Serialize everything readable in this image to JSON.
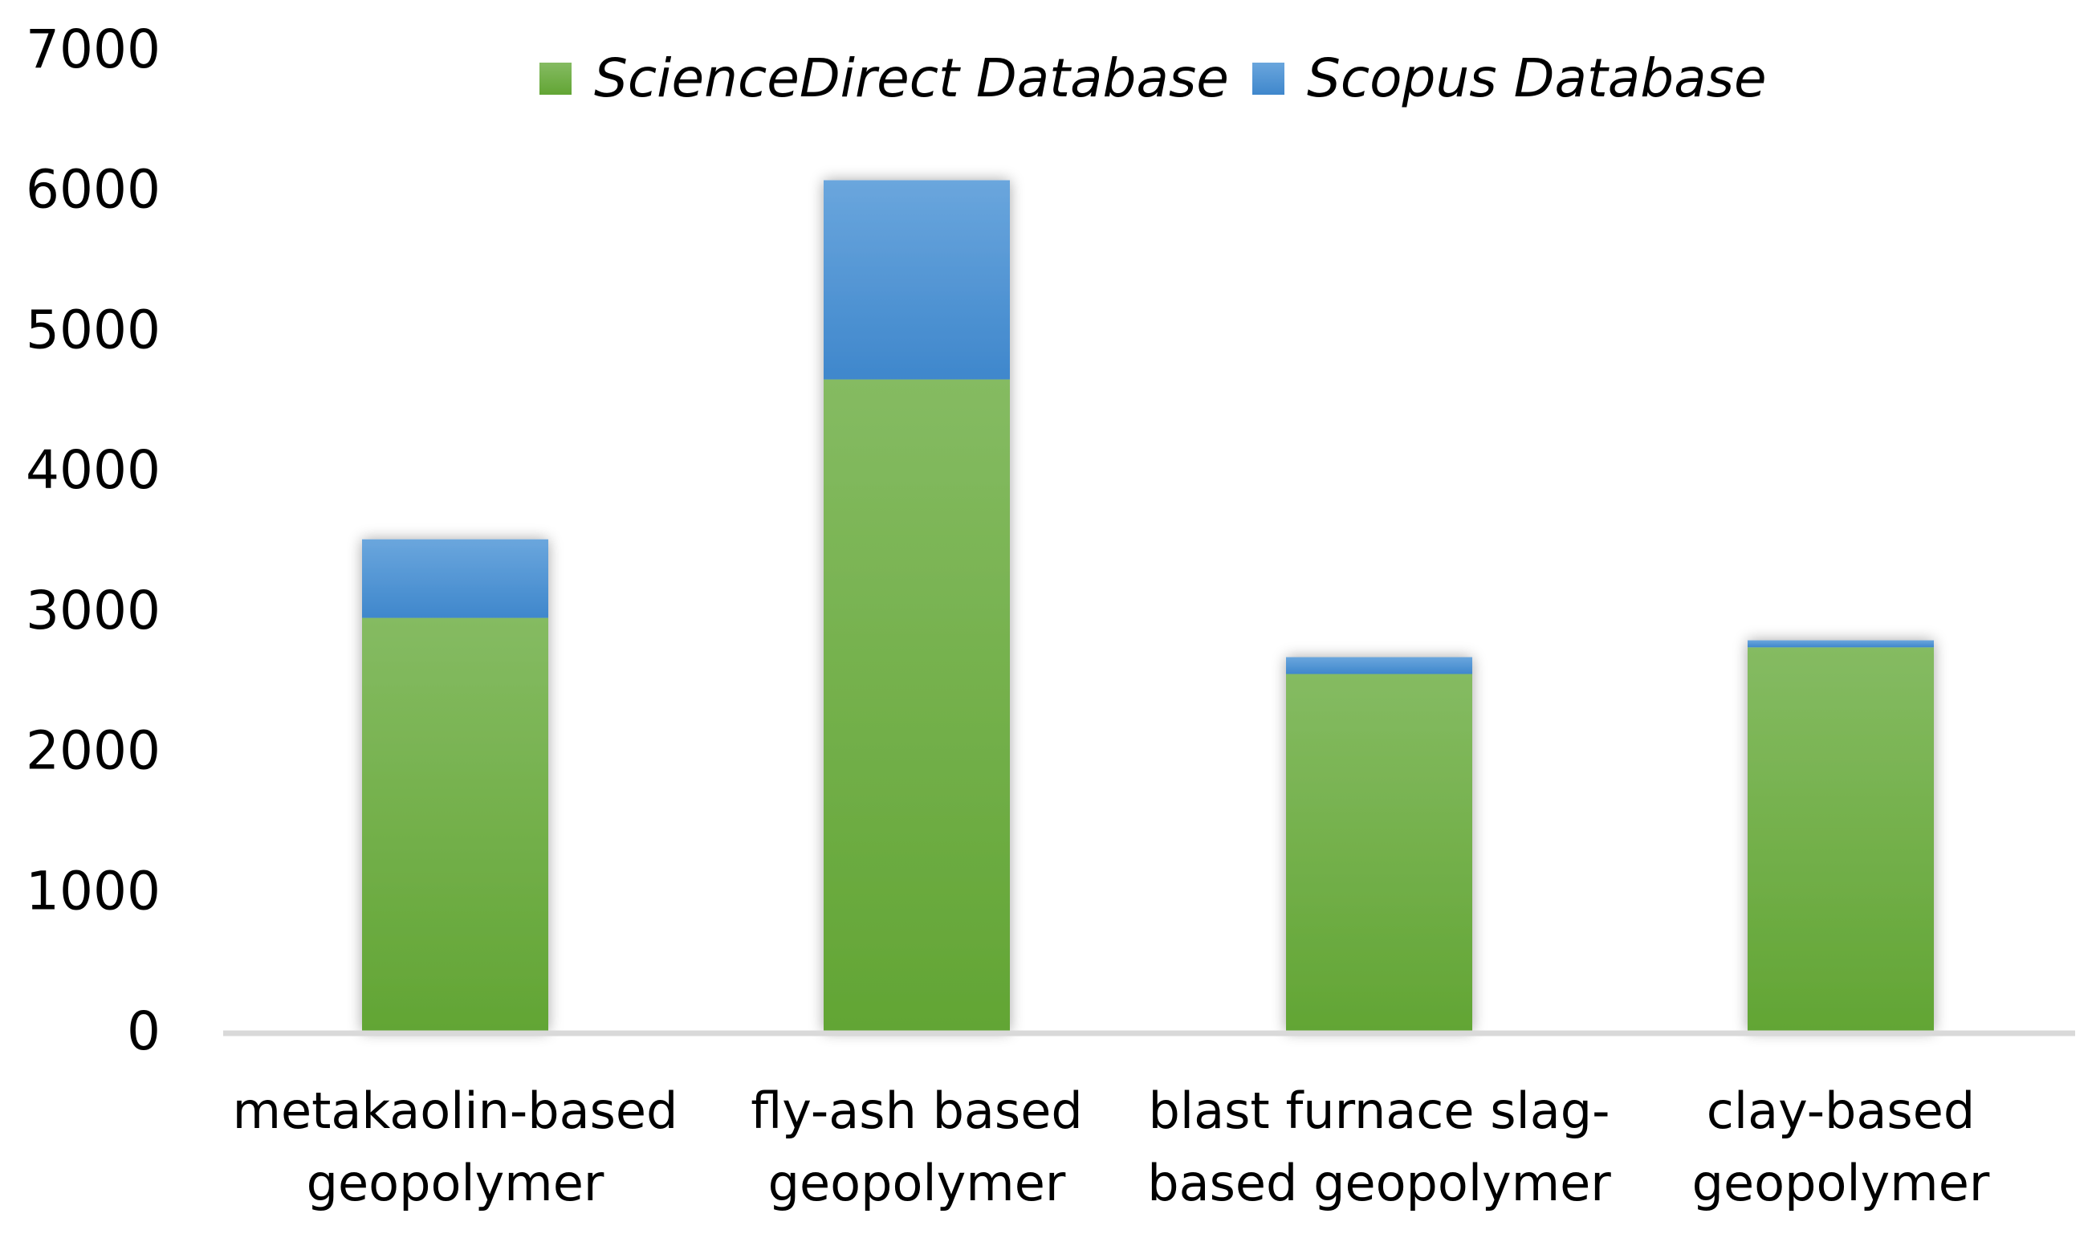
{
  "chart_data": {
    "type": "bar",
    "stacked": true,
    "categories": [
      [
        "metakaolin-based",
        "geopolymer"
      ],
      [
        "fly-ash based",
        "geopolymer"
      ],
      [
        "blast furnace slag-",
        "based geopolymer"
      ],
      [
        "clay-based",
        "geopolymer"
      ]
    ],
    "series": [
      {
        "name": "ScienceDirect Database",
        "color": "#6aab3b",
        "values": [
          2950,
          4650,
          2550,
          2740
        ]
      },
      {
        "name": "Scopus Database",
        "color": "#4a90d4",
        "values": [
          560,
          1420,
          120,
          50
        ]
      }
    ],
    "title": "",
    "xlabel": "",
    "ylabel": "",
    "ylim": [
      0,
      7000
    ],
    "yticks": [
      0,
      1000,
      2000,
      3000,
      4000,
      5000,
      6000,
      7000
    ],
    "grid": false,
    "legend_position": "top-center"
  }
}
